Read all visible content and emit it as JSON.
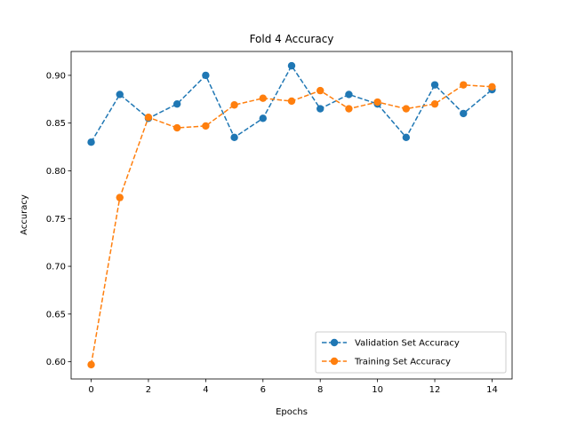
{
  "chart_data": {
    "type": "line",
    "title": "Fold 4 Accuracy",
    "xlabel": "Epochs",
    "ylabel": "Accuracy",
    "xlim": [
      -0.7,
      14.7
    ],
    "ylim": [
      0.582,
      0.925
    ],
    "xticks": [
      0,
      2,
      4,
      6,
      8,
      10,
      12,
      14
    ],
    "yticks": [
      0.6,
      0.65,
      0.7,
      0.75,
      0.8,
      0.85,
      0.9
    ],
    "ytick_format": 2,
    "grid": false,
    "legend_position": "lower right",
    "x": [
      0,
      1,
      2,
      3,
      4,
      5,
      6,
      7,
      8,
      9,
      10,
      11,
      12,
      13,
      14
    ],
    "series": [
      {
        "name": "Validation Set Accuracy",
        "color": "#1f77b4",
        "values": [
          0.83,
          0.88,
          0.855,
          0.87,
          0.9,
          0.835,
          0.855,
          0.91,
          0.865,
          0.88,
          0.87,
          0.835,
          0.89,
          0.86,
          0.885
        ]
      },
      {
        "name": "Training Set Accuracy",
        "color": "#ff7f0e",
        "values": [
          0.597,
          0.772,
          0.856,
          0.845,
          0.847,
          0.869,
          0.876,
          0.873,
          0.884,
          0.865,
          0.872,
          0.865,
          0.87,
          0.89,
          0.888
        ]
      }
    ]
  }
}
